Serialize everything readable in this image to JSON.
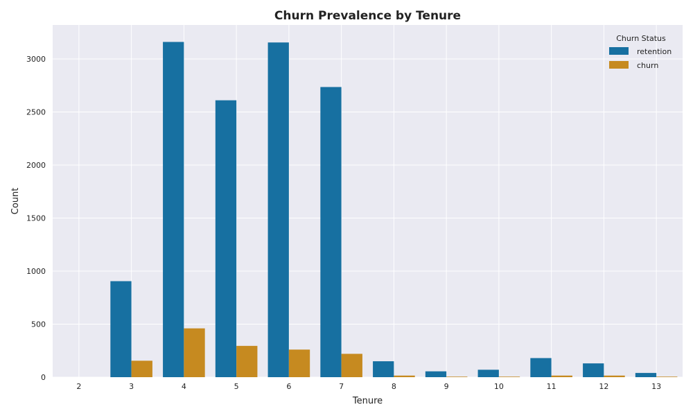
{
  "chart_data": {
    "type": "bar",
    "title": "Churn Prevalence by Tenure",
    "xlabel": "Tenure",
    "ylabel": "Count",
    "categories": [
      "2",
      "3",
      "4",
      "5",
      "6",
      "7",
      "8",
      "9",
      "10",
      "11",
      "12",
      "13"
    ],
    "series": [
      {
        "name": "retention",
        "values": [
          0,
          905,
          3160,
          2610,
          3155,
          2735,
          150,
          55,
          70,
          180,
          130,
          40
        ],
        "color": "#1770a1"
      },
      {
        "name": "churn",
        "values": [
          0,
          155,
          460,
          295,
          260,
          220,
          15,
          5,
          5,
          15,
          15,
          5
        ],
        "color": "#c68a20"
      }
    ],
    "yticks": [
      0,
      500,
      1000,
      1500,
      2000,
      2500,
      3000
    ],
    "ylim": [
      0,
      3320
    ],
    "grid": true,
    "legend": {
      "title": "Churn Status",
      "placement": "top-right"
    },
    "colors": {
      "plot_background": "#eaeaf2",
      "grid": "#ffffff",
      "text": "#222222"
    }
  }
}
